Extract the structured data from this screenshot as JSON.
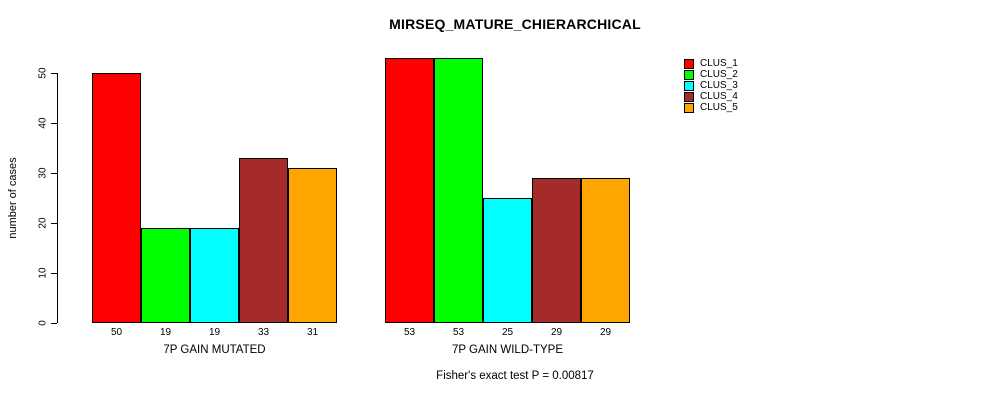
{
  "title": "MIRSEQ_MATURE_CHIERARCHICAL",
  "subtitle": "Fisher's exact test P = 0.00817",
  "axes": {
    "ylabel": "number of cases"
  },
  "legend": {
    "position": "top-right",
    "items": [
      {
        "label": "CLUS_1",
        "color": "#FF0000"
      },
      {
        "label": "CLUS_2",
        "color": "#00FF00"
      },
      {
        "label": "CLUS_3",
        "color": "#00FFFF"
      },
      {
        "label": "CLUS_4",
        "color": "#A52A2A"
      },
      {
        "label": "CLUS_5",
        "color": "#FFA500"
      }
    ]
  },
  "chart_data": {
    "type": "bar",
    "title": "MIRSEQ_MATURE_CHIERARCHICAL",
    "subtitle": "Fisher's exact test P = 0.00817",
    "ylabel": "number of cases",
    "xlabel": "",
    "ylim": [
      0,
      50
    ],
    "yticks": [
      0,
      10,
      20,
      30,
      40,
      50
    ],
    "grid": false,
    "legend_position": "top-right",
    "series": [
      "CLUS_1",
      "CLUS_2",
      "CLUS_3",
      "CLUS_4",
      "CLUS_5"
    ],
    "series_colors": [
      "#FF0000",
      "#00FF00",
      "#00FFFF",
      "#A52A2A",
      "#FFA500"
    ],
    "groups": [
      {
        "label": "7P GAIN MUTATED",
        "values": [
          50,
          19,
          19,
          33,
          31
        ],
        "value_labels": [
          "50",
          "19",
          "19",
          "33",
          "31"
        ]
      },
      {
        "label": "7P GAIN WILD-TYPE",
        "values": [
          53,
          53,
          25,
          29,
          29
        ],
        "value_labels": [
          "53",
          "53",
          "25",
          "29",
          "29"
        ]
      }
    ],
    "bar_value_labels_shown": true
  }
}
